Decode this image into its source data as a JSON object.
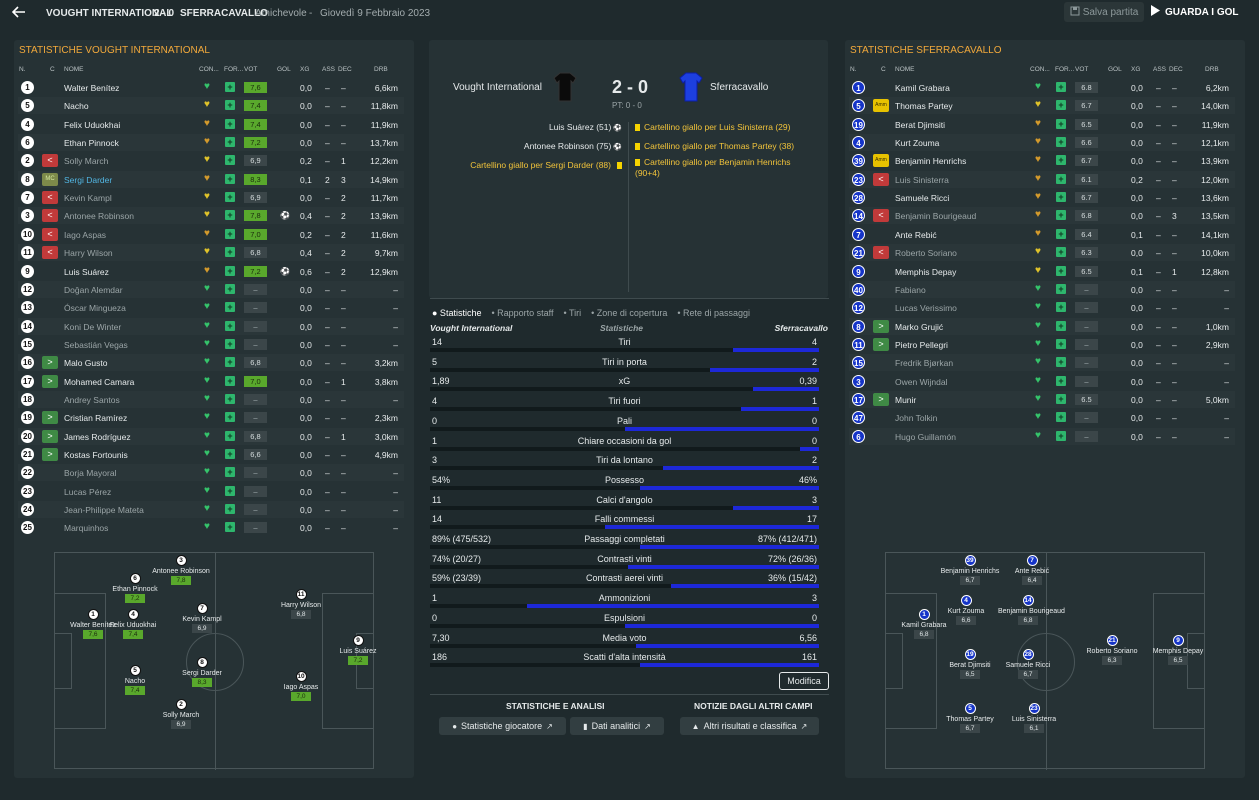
{
  "header": {
    "home": "VOUGHT INTERNATIONAL",
    "score": "2 - 0",
    "away": "SFERRACAVALLO",
    "competition": "Amichevole",
    "date": "Giovedì 9 Febbraio 2023",
    "save": "Salva partita",
    "goals": "GUARDA I GOL"
  },
  "left": {
    "title": "STATISTICHE VOUGHT INTERNATIONAL",
    "cols": [
      "N.",
      "C",
      "NOME",
      "CON...",
      "FOR...",
      "VOT",
      "GOL",
      "XG",
      "ASS",
      "DEC",
      "DRB"
    ],
    "rows": [
      {
        "n": "1",
        "sub": "",
        "nm": "Walter Benítez",
        "heart": "g",
        "r": "7,6",
        "rg": 1,
        "xg": "0,0",
        "ass": "–",
        "dec": "–",
        "drb": "6,6km",
        "dim": 0,
        "hl": 0,
        "gol": ""
      },
      {
        "n": "5",
        "sub": "",
        "nm": "Nacho",
        "heart": "y",
        "r": "7,4",
        "rg": 1,
        "xg": "0,0",
        "ass": "–",
        "dec": "–",
        "drb": "11,8km",
        "dim": 0,
        "hl": 0,
        "gol": ""
      },
      {
        "n": "4",
        "sub": "",
        "nm": "Felix Uduokhai",
        "heart": "o",
        "r": "7,4",
        "rg": 1,
        "xg": "0,0",
        "ass": "–",
        "dec": "–",
        "drb": "11,9km",
        "dim": 0,
        "hl": 0,
        "gol": ""
      },
      {
        "n": "6",
        "sub": "",
        "nm": "Ethan Pinnock",
        "heart": "o",
        "r": "7,2",
        "rg": 1,
        "xg": "0,0",
        "ass": "–",
        "dec": "–",
        "drb": "13,7km",
        "dim": 0,
        "hl": 0,
        "gol": ""
      },
      {
        "n": "2",
        "sub": "out",
        "nm": "Solly March",
        "heart": "y",
        "r": "6,9",
        "rg": 0,
        "xg": "0,2",
        "ass": "–",
        "dec": "1",
        "drb": "12,2km",
        "dim": 1,
        "hl": 0,
        "gol": ""
      },
      {
        "n": "8",
        "sub": "mc",
        "nm": "Sergi Darder",
        "heart": "o",
        "r": "8,3",
        "rg": 1,
        "xg": "0,1",
        "ass": "2",
        "dec": "3",
        "drb": "14,9km",
        "dim": 0,
        "hl": 1,
        "gol": ""
      },
      {
        "n": "7",
        "sub": "out",
        "nm": "Kevin Kampl",
        "heart": "y",
        "r": "6,9",
        "rg": 0,
        "xg": "0,0",
        "ass": "–",
        "dec": "2",
        "drb": "11,7km",
        "dim": 1,
        "hl": 0,
        "gol": ""
      },
      {
        "n": "3",
        "sub": "out",
        "nm": "Antonee Robinson",
        "heart": "y",
        "r": "7,8",
        "rg": 1,
        "xg": "0,4",
        "ass": "–",
        "dec": "2",
        "drb": "13,9km",
        "dim": 1,
        "hl": 0,
        "gol": "⚽"
      },
      {
        "n": "10",
        "sub": "out",
        "nm": "Iago Aspas",
        "heart": "o",
        "r": "7,0",
        "rg": 1,
        "xg": "0,2",
        "ass": "–",
        "dec": "2",
        "drb": "11,6km",
        "dim": 1,
        "hl": 0,
        "gol": ""
      },
      {
        "n": "11",
        "sub": "out",
        "nm": "Harry Wilson",
        "heart": "y",
        "r": "6,8",
        "rg": 0,
        "xg": "0,4",
        "ass": "–",
        "dec": "2",
        "drb": "9,7km",
        "dim": 1,
        "hl": 0,
        "gol": ""
      },
      {
        "n": "9",
        "sub": "",
        "nm": "Luis Suárez",
        "heart": "o",
        "r": "7,2",
        "rg": 1,
        "xg": "0,6",
        "ass": "–",
        "dec": "2",
        "drb": "12,9km",
        "dim": 0,
        "hl": 0,
        "gol": "⚽"
      },
      {
        "n": "12",
        "sub": "",
        "nm": "Doğan Alemdar",
        "heart": "g",
        "r": "–",
        "rg": 2,
        "xg": "0,0",
        "ass": "–",
        "dec": "–",
        "drb": "–",
        "dim": 1,
        "hl": 0,
        "gol": ""
      },
      {
        "n": "13",
        "sub": "",
        "nm": "Óscar Mingueza",
        "heart": "g",
        "r": "–",
        "rg": 2,
        "xg": "0,0",
        "ass": "–",
        "dec": "–",
        "drb": "–",
        "dim": 1,
        "hl": 0,
        "gol": ""
      },
      {
        "n": "14",
        "sub": "",
        "nm": "Koni De Winter",
        "heart": "g",
        "r": "–",
        "rg": 2,
        "xg": "0,0",
        "ass": "–",
        "dec": "–",
        "drb": "–",
        "dim": 1,
        "hl": 0,
        "gol": ""
      },
      {
        "n": "15",
        "sub": "",
        "nm": "Sebastián Vegas",
        "heart": "g",
        "r": "–",
        "rg": 2,
        "xg": "0,0",
        "ass": "–",
        "dec": "–",
        "drb": "–",
        "dim": 1,
        "hl": 0,
        "gol": ""
      },
      {
        "n": "16",
        "sub": "in",
        "nm": "Malo Gusto",
        "heart": "g",
        "r": "6,8",
        "rg": 0,
        "xg": "0,0",
        "ass": "–",
        "dec": "–",
        "drb": "3,2km",
        "dim": 0,
        "hl": 0,
        "gol": ""
      },
      {
        "n": "17",
        "sub": "in",
        "nm": "Mohamed Camara",
        "heart": "g",
        "r": "7,0",
        "rg": 1,
        "xg": "0,0",
        "ass": "–",
        "dec": "1",
        "drb": "3,8km",
        "dim": 0,
        "hl": 0,
        "gol": ""
      },
      {
        "n": "18",
        "sub": "",
        "nm": "Andrey Santos",
        "heart": "g",
        "r": "–",
        "rg": 2,
        "xg": "0,0",
        "ass": "–",
        "dec": "–",
        "drb": "–",
        "dim": 1,
        "hl": 0,
        "gol": ""
      },
      {
        "n": "19",
        "sub": "in",
        "nm": "Cristian Ramírez",
        "heart": "g",
        "r": "–",
        "rg": 2,
        "xg": "0,0",
        "ass": "–",
        "dec": "–",
        "drb": "2,3km",
        "dim": 0,
        "hl": 0,
        "gol": ""
      },
      {
        "n": "20",
        "sub": "in",
        "nm": "James Rodríguez",
        "heart": "g",
        "r": "6,8",
        "rg": 0,
        "xg": "0,0",
        "ass": "–",
        "dec": "1",
        "drb": "3,0km",
        "dim": 0,
        "hl": 0,
        "gol": ""
      },
      {
        "n": "21",
        "sub": "in",
        "nm": "Kostas Fortounis",
        "heart": "g",
        "r": "6,6",
        "rg": 0,
        "xg": "0,0",
        "ass": "–",
        "dec": "–",
        "drb": "4,9km",
        "dim": 0,
        "hl": 0,
        "gol": ""
      },
      {
        "n": "22",
        "sub": "",
        "nm": "Borja Mayoral",
        "heart": "g",
        "r": "–",
        "rg": 2,
        "xg": "0,0",
        "ass": "–",
        "dec": "–",
        "drb": "–",
        "dim": 1,
        "hl": 0,
        "gol": ""
      },
      {
        "n": "23",
        "sub": "",
        "nm": "Lucas Pérez",
        "heart": "g",
        "r": "–",
        "rg": 2,
        "xg": "0,0",
        "ass": "–",
        "dec": "–",
        "drb": "–",
        "dim": 1,
        "hl": 0,
        "gol": ""
      },
      {
        "n": "24",
        "sub": "",
        "nm": "Jean-Philippe Mateta",
        "heart": "g",
        "r": "–",
        "rg": 2,
        "xg": "0,0",
        "ass": "–",
        "dec": "–",
        "drb": "–",
        "dim": 1,
        "hl": 0,
        "gol": ""
      },
      {
        "n": "25",
        "sub": "",
        "nm": "Marquinhos",
        "heart": "g",
        "r": "–",
        "rg": 2,
        "xg": "0,0",
        "ass": "–",
        "dec": "–",
        "drb": "–",
        "dim": 1,
        "hl": 0,
        "gol": ""
      }
    ]
  },
  "right": {
    "title": "STATISTICHE SFERRACAVALLO",
    "rows": [
      {
        "n": "1",
        "sub": "",
        "nm": "Kamil Grabara",
        "heart": "g",
        "r": "6.8",
        "xg": "0,0",
        "ass": "–",
        "dec": "–",
        "drb": "6,2km",
        "dim": 0
      },
      {
        "n": "5",
        "sub": "amm",
        "nm": "Thomas Partey",
        "heart": "y",
        "r": "6.7",
        "xg": "0,0",
        "ass": "–",
        "dec": "–",
        "drb": "14,0km",
        "dim": 0
      },
      {
        "n": "19",
        "sub": "",
        "nm": "Berat Djimsiti",
        "heart": "o",
        "r": "6.5",
        "xg": "0,0",
        "ass": "–",
        "dec": "–",
        "drb": "11,9km",
        "dim": 0
      },
      {
        "n": "4",
        "sub": "",
        "nm": "Kurt Zouma",
        "heart": "o",
        "r": "6.6",
        "xg": "0,0",
        "ass": "–",
        "dec": "–",
        "drb": "12,1km",
        "dim": 0
      },
      {
        "n": "39",
        "sub": "amm",
        "nm": "Benjamin Henrichs",
        "heart": "o",
        "r": "6.7",
        "xg": "0,0",
        "ass": "–",
        "dec": "–",
        "drb": "13,9km",
        "dim": 0
      },
      {
        "n": "23",
        "sub": "out",
        "nm": "Luis Sinisterra",
        "heart": "o",
        "r": "6.1",
        "xg": "0,2",
        "ass": "–",
        "dec": "–",
        "drb": "12,0km",
        "dim": 1
      },
      {
        "n": "28",
        "sub": "",
        "nm": "Samuele Ricci",
        "heart": "o",
        "r": "6.7",
        "xg": "0,0",
        "ass": "–",
        "dec": "–",
        "drb": "13,6km",
        "dim": 0
      },
      {
        "n": "14",
        "sub": "out",
        "nm": "Benjamin Bourigeaud",
        "heart": "o",
        "r": "6.8",
        "xg": "0,0",
        "ass": "–",
        "dec": "3",
        "drb": "13,5km",
        "dim": 1
      },
      {
        "n": "7",
        "sub": "",
        "nm": "Ante Rebić",
        "heart": "o",
        "r": "6.4",
        "xg": "0,1",
        "ass": "–",
        "dec": "–",
        "drb": "14,1km",
        "dim": 0
      },
      {
        "n": "21",
        "sub": "out",
        "nm": "Roberto Soriano",
        "heart": "y",
        "r": "6.3",
        "xg": "0,0",
        "ass": "–",
        "dec": "–",
        "drb": "10,0km",
        "dim": 1
      },
      {
        "n": "9",
        "sub": "",
        "nm": "Memphis Depay",
        "heart": "y",
        "r": "6.5",
        "xg": "0,1",
        "ass": "–",
        "dec": "1",
        "drb": "12,8km",
        "dim": 0
      },
      {
        "n": "40",
        "sub": "",
        "nm": "Fabiano",
        "heart": "g",
        "r": "–",
        "xg": "0,0",
        "ass": "–",
        "dec": "–",
        "drb": "–",
        "dim": 1
      },
      {
        "n": "12",
        "sub": "",
        "nm": "Lucas Verissimo",
        "heart": "g",
        "r": "–",
        "xg": "0,0",
        "ass": "–",
        "dec": "–",
        "drb": "–",
        "dim": 1
      },
      {
        "n": "8",
        "sub": "in",
        "nm": "Marko Grujić",
        "heart": "g",
        "r": "–",
        "xg": "0,0",
        "ass": "–",
        "dec": "–",
        "drb": "1,0km",
        "dim": 0
      },
      {
        "n": "11",
        "sub": "in",
        "nm": "Pietro Pellegri",
        "heart": "g",
        "r": "–",
        "xg": "0,0",
        "ass": "–",
        "dec": "–",
        "drb": "2,9km",
        "dim": 0
      },
      {
        "n": "15",
        "sub": "",
        "nm": "Fredrik Bjørkan",
        "heart": "g",
        "r": "–",
        "xg": "0,0",
        "ass": "–",
        "dec": "–",
        "drb": "–",
        "dim": 1
      },
      {
        "n": "3",
        "sub": "",
        "nm": "Owen Wijndal",
        "heart": "g",
        "r": "–",
        "xg": "0,0",
        "ass": "–",
        "dec": "–",
        "drb": "–",
        "dim": 1
      },
      {
        "n": "17",
        "sub": "in",
        "nm": "Munir",
        "heart": "g",
        "r": "6.5",
        "xg": "0,0",
        "ass": "–",
        "dec": "–",
        "drb": "5,0km",
        "dim": 0
      },
      {
        "n": "47",
        "sub": "",
        "nm": "John Tolkin",
        "heart": "g",
        "r": "–",
        "xg": "0,0",
        "ass": "–",
        "dec": "–",
        "drb": "–",
        "dim": 1
      },
      {
        "n": "6",
        "sub": "",
        "nm": "Hugo Guillamón",
        "heart": "g",
        "r": "–",
        "xg": "0,0",
        "ass": "–",
        "dec": "–",
        "drb": "–",
        "dim": 1
      }
    ]
  },
  "center": {
    "home": "Vought International",
    "away": "Sferracavallo",
    "score": "2 - 0",
    "pt": "PT: 0 - 0",
    "home_events": [
      {
        "t": "Luis Suárez (51)",
        "k": "goal"
      },
      {
        "t": "Antonee Robinson (75)",
        "k": "goal"
      },
      {
        "t": "Cartellino giallo per Sergi Darder (88)",
        "k": "yellow"
      }
    ],
    "away_events": [
      {
        "t": "Cartellino giallo per Luis Sinisterra (29)"
      },
      {
        "t": "Cartellino giallo per Thomas Partey (38)"
      },
      {
        "t": "Cartellino giallo per Benjamin Henrichs (90+4)"
      }
    ],
    "tabs": [
      "Statistiche",
      "Rapporto staff",
      "Tiri",
      "Zone di copertura",
      "Rete di passaggi"
    ],
    "stat_head": {
      "home": "Vought International",
      "mid": "Statistiche",
      "away": "Sferracavallo"
    },
    "stats": [
      {
        "l": "14",
        "lab": "Tiri",
        "r": "4",
        "p": 0.22
      },
      {
        "l": "5",
        "lab": "Tiri in porta",
        "r": "2",
        "p": 0.28
      },
      {
        "l": "1,89",
        "lab": "xG",
        "r": "0,39",
        "p": 0.17
      },
      {
        "l": "4",
        "lab": "Tiri fuori",
        "r": "1",
        "p": 0.2
      },
      {
        "l": "0",
        "lab": "Pali",
        "r": "0",
        "p": 0.5
      },
      {
        "l": "1",
        "lab": "Chiare occasioni da gol",
        "r": "0",
        "p": 0.05
      },
      {
        "l": "3",
        "lab": "Tiri da lontano",
        "r": "2",
        "p": 0.4
      },
      {
        "l": "54%",
        "lab": "Possesso",
        "r": "46%",
        "p": 0.46
      },
      {
        "l": "11",
        "lab": "Calci d'angolo",
        "r": "3",
        "p": 0.22
      },
      {
        "l": "14",
        "lab": "Falli commessi",
        "r": "17",
        "p": 0.55
      },
      {
        "l": "89% (475/532)",
        "lab": "Passaggi completati",
        "r": "87% (412/471)",
        "p": 0.46
      },
      {
        "l": "74% (20/27)",
        "lab": "Contrasti vinti",
        "r": "72% (26/36)",
        "p": 0.49
      },
      {
        "l": "59% (23/39)",
        "lab": "Contrasti aerei vinti",
        "r": "36% (15/42)",
        "p": 0.38
      },
      {
        "l": "1",
        "lab": "Ammonizioni",
        "r": "3",
        "p": 0.75
      },
      {
        "l": "0",
        "lab": "Espulsioni",
        "r": "0",
        "p": 0.5
      },
      {
        "l": "7,30",
        "lab": "Media voto",
        "r": "6,56",
        "p": 0.47
      },
      {
        "l": "186",
        "lab": "Scatti d'alta intensità",
        "r": "161",
        "p": 0.46
      }
    ],
    "modifica": "Modifica",
    "analysis_title": "STATISTICHE E ANALISI",
    "other_title": "NOTIZIE DAGLI ALTRI CAMPI",
    "btn_players": "Statistiche giocatore",
    "btn_data": "Dati analitici",
    "btn_other": "Altri risultati e classifica"
  },
  "home_pitch": [
    {
      "n": "1",
      "nm": "Walter Benítez",
      "r": "7,6",
      "g": 1
    },
    {
      "n": "4",
      "nm": "Felix Uduokhai",
      "r": "7,4",
      "g": 1
    },
    {
      "n": "6",
      "nm": "Ethan Pinnock",
      "r": "7,2",
      "g": 1
    },
    {
      "n": "3",
      "nm": "Antonee Robinson",
      "r": "7,8",
      "g": 1
    },
    {
      "n": "5",
      "nm": "Nacho",
      "r": "7,4",
      "g": 1
    },
    {
      "n": "2",
      "nm": "Solly March",
      "r": "6,9",
      "g": 0
    },
    {
      "n": "7",
      "nm": "Kevin Kampl",
      "r": "6,9",
      "g": 0
    },
    {
      "n": "8",
      "nm": "Sergi Darder",
      "r": "8,3",
      "g": 1
    },
    {
      "n": "11",
      "nm": "Harry Wilson",
      "r": "6,8",
      "g": 0
    },
    {
      "n": "10",
      "nm": "Iago Aspas",
      "r": "7,0",
      "g": 1
    },
    {
      "n": "9",
      "nm": "Luis Suárez",
      "r": "7,2",
      "g": 1
    }
  ],
  "away_pitch": [
    {
      "n": "1",
      "nm": "Kamil Grabara",
      "r": "6,8"
    },
    {
      "n": "39",
      "nm": "Benjamin Henrichs",
      "r": "6,7"
    },
    {
      "n": "7",
      "nm": "Ante Rebić",
      "r": "6,4"
    },
    {
      "n": "4",
      "nm": "Kurt Zouma",
      "r": "6,6"
    },
    {
      "n": "14",
      "nm": "Benjamin Bourigeaud",
      "r": "6,8"
    },
    {
      "n": "19",
      "nm": "Berat Djimsiti",
      "r": "6,5"
    },
    {
      "n": "28",
      "nm": "Samuele Ricci",
      "r": "6,7"
    },
    {
      "n": "21",
      "nm": "Roberto Soriano",
      "r": "6,3"
    },
    {
      "n": "9",
      "nm": "Memphis Depay",
      "r": "6,5"
    },
    {
      "n": "5",
      "nm": "Thomas Partey",
      "r": "6,7"
    },
    {
      "n": "23",
      "nm": "Luis Sinisterra",
      "r": "6,1"
    }
  ]
}
